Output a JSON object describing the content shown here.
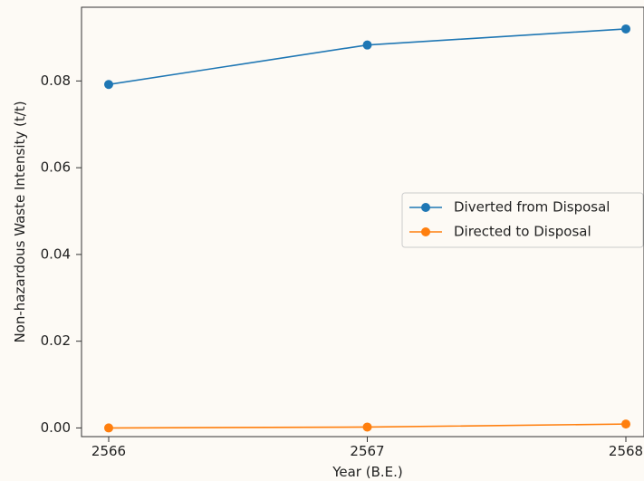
{
  "chart_data": {
    "type": "line",
    "title": "",
    "xlabel": "Year (B.E.)",
    "ylabel": "Non-hazardous Waste Intensity (t/t)",
    "x": [
      2566,
      2567,
      2568
    ],
    "xticks": [
      "2566",
      "2567",
      "2568"
    ],
    "yticks": [
      "0.00",
      "0.02",
      "0.04",
      "0.06",
      "0.08"
    ],
    "ylim": [
      -0.002,
      0.097
    ],
    "grid": false,
    "legend_position": "center-right",
    "series": [
      {
        "name": "Diverted from Disposal",
        "values": [
          0.0792,
          0.0883,
          0.092
        ],
        "color": "#1f77b4"
      },
      {
        "name": "Directed to Disposal",
        "values": [
          0.0,
          0.0002,
          0.0009
        ],
        "color": "#ff7f0e"
      }
    ]
  }
}
